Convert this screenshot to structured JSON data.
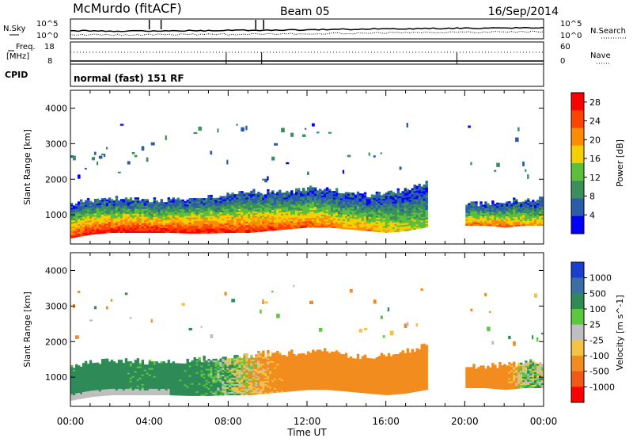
{
  "header": {
    "station": "McMurdo (fitACF)",
    "beam": "Beam 05",
    "date": "16/Sep/2014"
  },
  "top_panels": {
    "nsky_label": "N.Sky",
    "nsearch_label": "N.Search",
    "freq_label": "Freq.",
    "freq_unit": "[MHz]",
    "nave_label": "Nave",
    "cpid_label": "CPID",
    "cpid_value": "normal (fast) 151 RF",
    "noise_left_ticks": [
      "10^5",
      "10^0"
    ],
    "noise_right_ticks": [
      "10^5",
      "10^0"
    ],
    "freq_ticks": [
      "18",
      "8"
    ],
    "nave_ticks": [
      "60",
      "0"
    ]
  },
  "colors": {
    "power_scale": [
      "#0000ff",
      "#2a5caa",
      "#3b8f5c",
      "#5bbf3c",
      "#f4d000",
      "#ff8c00",
      "#ff4400",
      "#ff0000"
    ],
    "velocity_scale": [
      "#1a3fcf",
      "#3a6ea5",
      "#2e8b57",
      "#5cc83c",
      "#bfbfbf",
      "#f3c343",
      "#f28c1e",
      "#f05a14",
      "#ff0000"
    ],
    "ground_scatter": "#bfbfbf"
  },
  "chart_data": [
    {
      "type": "heatmap",
      "name": "power",
      "ylabel": "Slant Range [km]",
      "ylim": [
        180,
        4500
      ],
      "yticks": [
        "1000",
        "2000",
        "3000",
        "4000"
      ],
      "xlim": [
        "00:00",
        "24:00"
      ],
      "colorbar_label": "Power [dB]",
      "colorbar_ticks": [
        "4",
        "8",
        "12",
        "16",
        "20",
        "24",
        "28"
      ],
      "colorbar_range": [
        0,
        30
      ],
      "time_hours": [
        0,
        1,
        2,
        3,
        4,
        5,
        6,
        7,
        8,
        9,
        10,
        11,
        12,
        13,
        14,
        15,
        16,
        17,
        18,
        19,
        20,
        21,
        22,
        23
      ],
      "scatter_bottom_km": [
        350,
        450,
        500,
        500,
        500,
        500,
        480,
        480,
        500,
        500,
        550,
        600,
        650,
        650,
        600,
        550,
        500,
        550,
        650,
        null,
        700,
        700,
        650,
        700
      ],
      "scatter_top_km": [
        1300,
        1400,
        1450,
        1450,
        1400,
        1400,
        1450,
        1500,
        1550,
        1600,
        1650,
        1650,
        1700,
        1750,
        1600,
        1550,
        1600,
        1700,
        1900,
        null,
        1300,
        1300,
        1350,
        1400
      ],
      "peak_power_db": [
        28,
        30,
        30,
        30,
        30,
        30,
        30,
        30,
        28,
        28,
        28,
        26,
        26,
        24,
        22,
        22,
        20,
        18,
        16,
        null,
        24,
        24,
        24,
        22
      ]
    },
    {
      "type": "heatmap",
      "name": "velocity",
      "ylabel": "Slant Range [km]",
      "ylim": [
        180,
        4500
      ],
      "yticks": [
        "1000",
        "2000",
        "3000",
        "4000"
      ],
      "xlim": [
        "00:00",
        "24:00"
      ],
      "xlabel": "Time UT",
      "xticks": [
        "00:00",
        "04:00",
        "08:00",
        "12:00",
        "16:00",
        "20:00",
        "00:00"
      ],
      "colorbar_label": "Velocity [m s^-1]",
      "colorbar_ticks": [
        "1000",
        "500",
        "100",
        "25",
        "-25",
        "-100",
        "-500",
        "-1000"
      ],
      "time_hours": [
        0,
        1,
        2,
        3,
        4,
        5,
        6,
        7,
        8,
        9,
        10,
        11,
        12,
        13,
        14,
        15,
        16,
        17,
        18,
        19,
        20,
        21,
        22,
        23
      ],
      "mean_velocity_ms": [
        200,
        300,
        300,
        200,
        200,
        250,
        200,
        150,
        50,
        -50,
        -150,
        -250,
        -300,
        -300,
        -300,
        -350,
        -300,
        -250,
        -300,
        null,
        -300,
        -300,
        -250,
        50
      ]
    }
  ]
}
